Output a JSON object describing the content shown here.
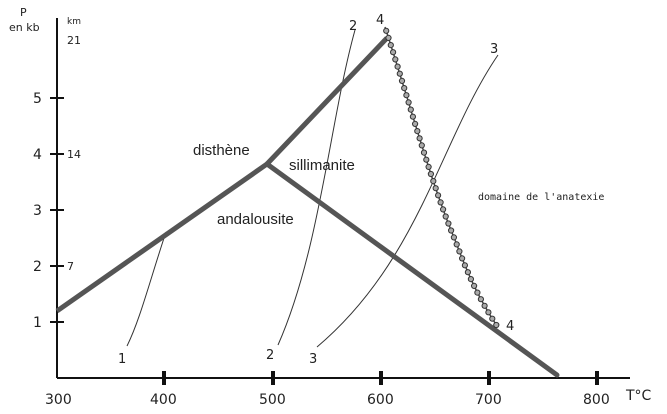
{
  "axes": {
    "y_title": "P",
    "y_title_line2": "en kb",
    "km_label": "km",
    "x_unit": "T°C",
    "x_ticks": [
      "300",
      "400",
      "500",
      "600",
      "700",
      "800"
    ],
    "y_ticks": [
      "1",
      "2",
      "3",
      "4",
      "5"
    ],
    "km_ticks": [
      "7",
      "14",
      "21"
    ]
  },
  "phases": {
    "disthene": "disthène",
    "sillimanite": "sillimanite",
    "andalousite": "andalousite"
  },
  "domain_note": "domaine de l'anatexie",
  "curve_labels": {
    "c1": "1",
    "c2_bottom": "2",
    "c2_top": "2",
    "c3_bottom": "3",
    "c3_top": "3",
    "c4_top": "4",
    "c4_bottom": "4"
  },
  "colors": {
    "phase_boundary": "#555555",
    "axis": "#111111",
    "curve": "#333333",
    "anatexis_curve": "#444444",
    "marker_fill": "#aaaaaa"
  }
}
